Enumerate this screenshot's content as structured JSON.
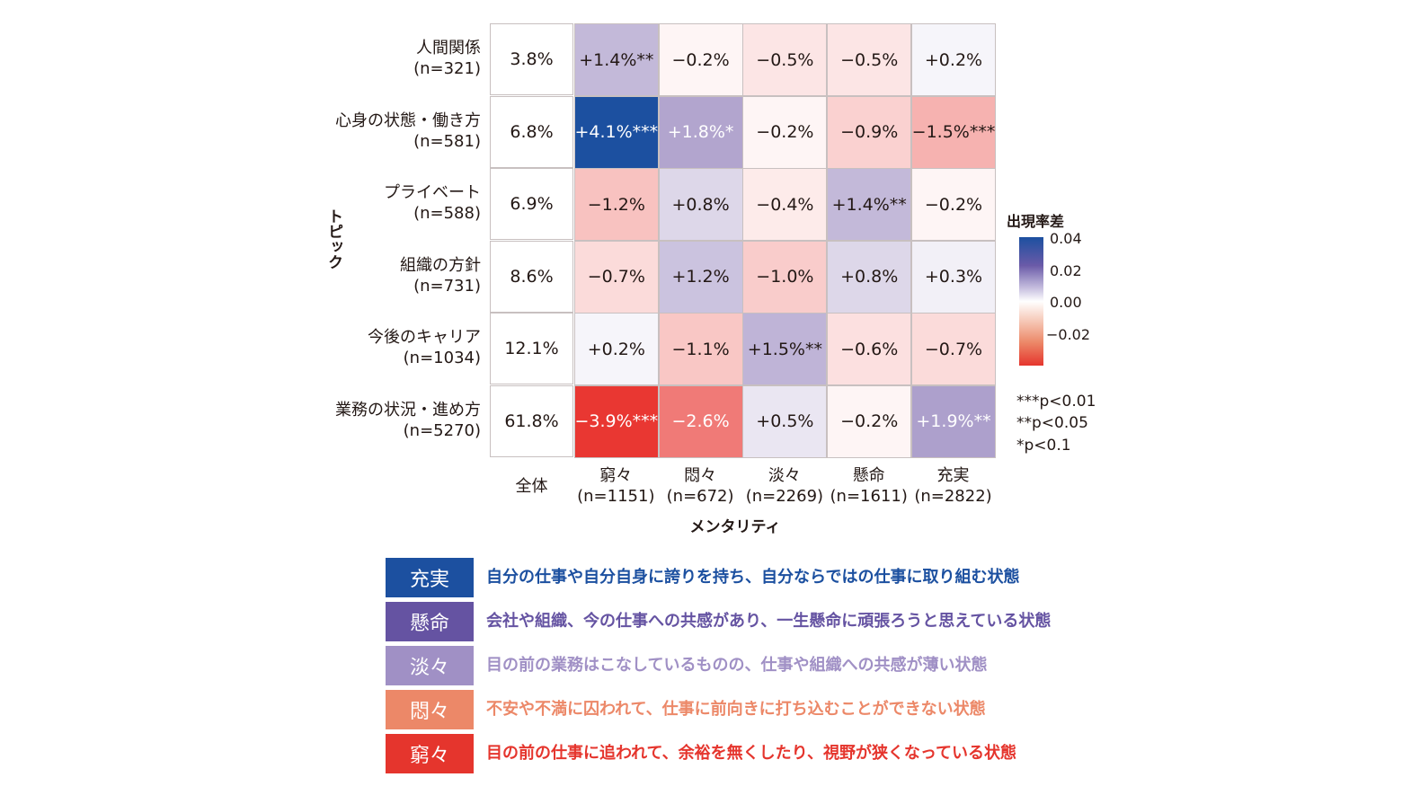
{
  "chart_data": {
    "type": "heatmap",
    "xlabel": "メンタリティ",
    "ylabel": "トピック",
    "colorbar": {
      "title": "出現率差",
      "ticks": [
        "0.04",
        "0.02",
        "0.00",
        "−0.02"
      ],
      "range": [
        -0.04,
        0.04
      ],
      "colors": {
        "negative": "#e8322d",
        "zero": "#ffffff",
        "mid_positive": "#a99bc9",
        "positive": "#1c50a0"
      }
    },
    "significance_notes": [
      "***p<0.01",
      "**p<0.05",
      "*p<0.1"
    ],
    "columns": [
      {
        "label": "全体",
        "n": ""
      },
      {
        "label": "窮々",
        "n": "(n=1151)"
      },
      {
        "label": "悶々",
        "n": "(n=672)"
      },
      {
        "label": "淡々",
        "n": "(n=2269)"
      },
      {
        "label": "懸命",
        "n": "(n=1611)"
      },
      {
        "label": "充実",
        "n": "(n=2822)"
      }
    ],
    "rows": [
      {
        "label": "人間関係",
        "n": "(n=321)",
        "overall": "3.8%",
        "values": [
          1.4,
          -0.2,
          -0.5,
          -0.5,
          0.2
        ],
        "labels": [
          "+1.4%**",
          "−0.2%",
          "−0.5%",
          "−0.5%",
          "+0.2%"
        ]
      },
      {
        "label": "心身の状態・働き方",
        "n": "(n=581)",
        "overall": "6.8%",
        "values": [
          4.1,
          1.8,
          -0.2,
          -0.9,
          -1.5
        ],
        "labels": [
          "+4.1%***",
          "+1.8%*",
          "−0.2%",
          "−0.9%",
          "−1.5%***"
        ]
      },
      {
        "label": "プライベート",
        "n": "(n=588)",
        "overall": "6.9%",
        "values": [
          -1.2,
          0.8,
          -0.4,
          1.4,
          -0.2
        ],
        "labels": [
          "−1.2%",
          "+0.8%",
          "−0.4%",
          "+1.4%**",
          "−0.2%"
        ]
      },
      {
        "label": "組織の方針",
        "n": "(n=731)",
        "overall": "8.6%",
        "values": [
          -0.7,
          1.2,
          -1.0,
          0.8,
          0.3
        ],
        "labels": [
          "−0.7%",
          "+1.2%",
          "−1.0%",
          "+0.8%",
          "+0.3%"
        ]
      },
      {
        "label": "今後のキャリア",
        "n": "(n=1034)",
        "overall": "12.1%",
        "values": [
          0.2,
          -1.1,
          1.5,
          -0.6,
          -0.7
        ],
        "labels": [
          "+0.2%",
          "−1.1%",
          "+1.5%**",
          "−0.6%",
          "−0.7%"
        ]
      },
      {
        "label": "業務の状況・進め方",
        "n": "(n=5270)",
        "overall": "61.8%",
        "values": [
          -3.9,
          -2.6,
          0.5,
          -0.2,
          1.9
        ],
        "labels": [
          "−3.9%***",
          "−2.6%",
          "+0.5%",
          "−0.2%",
          "+1.9%**"
        ]
      }
    ]
  },
  "legend": [
    {
      "name": "充実",
      "color": "#1c50a0",
      "desc": "自分の仕事や自分自身に誇りを持ち、自分ならではの仕事に取り組む状態"
    },
    {
      "name": "懸命",
      "color": "#6553a2",
      "desc": "会社や組織、今の仕事への共感があり、一生懸命に頑張ろうと思えている状態"
    },
    {
      "name": "淡々",
      "color": "#a090c5",
      "desc": "目の前の業務はこなしているものの、仕事や組織への共感が薄い状態"
    },
    {
      "name": "悶々",
      "color": "#ec8868",
      "desc": "不安や不満に囚われて、仕事に前向きに打ち込むことができない状態"
    },
    {
      "name": "窮々",
      "color": "#e5352d",
      "desc": "目の前の仕事に追われて、余裕を無くしたり、視野が狭くなっている状態"
    }
  ]
}
